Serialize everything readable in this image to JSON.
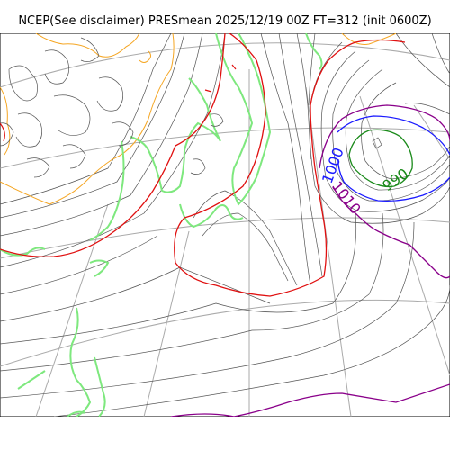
{
  "title": "NCEP(See disclaimer) PRESmean 2025/12/19 00Z FT=312 (init 0600Z)",
  "contour_labels": [
    {
      "text": "1000",
      "color": "#1a1aff"
    },
    {
      "text": "990",
      "color": "#1a8a1a"
    },
    {
      "text": "1010",
      "color": "#8a008a"
    }
  ],
  "colors": {
    "isobar": "#555555",
    "graticule": "#aaaaaa",
    "coast": "#7ee87e",
    "topo_orange": "#f5a623",
    "isobar_1020_red": "#e01010",
    "isobar_1010_purple": "#8a008a",
    "isobar_1000_blue": "#1a1aff",
    "isobar_990_green": "#1a8a1a"
  }
}
